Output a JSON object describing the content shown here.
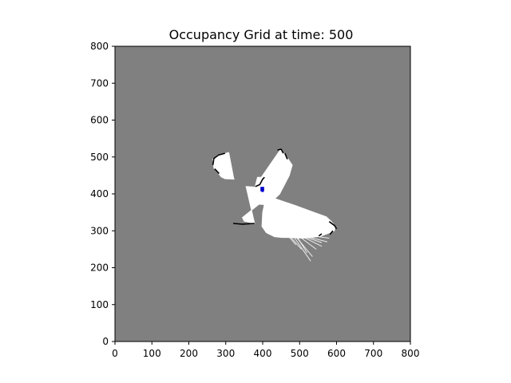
{
  "chart_data": {
    "type": "heatmap",
    "title": "Occupancy Grid at time: 500",
    "xlabel": "",
    "ylabel": "",
    "xlim": [
      0,
      800
    ],
    "ylim": [
      0,
      800
    ],
    "x_ticks": [
      0,
      100,
      200,
      300,
      400,
      500,
      600,
      700,
      800
    ],
    "y_ticks": [
      0,
      100,
      200,
      300,
      400,
      500,
      600,
      700,
      800
    ],
    "grid": false,
    "legend": "none",
    "cell_states": {
      "unknown": {
        "color": "#808080"
      },
      "free": {
        "color": "#ffffff"
      },
      "occupied": {
        "color": "#000000"
      },
      "robot": {
        "color": "#0000cc"
      }
    },
    "free_regions": [
      {
        "name": "left-lobe",
        "points": [
          [
            265,
            493
          ],
          [
            278,
            505
          ],
          [
            308,
            512
          ],
          [
            322,
            440
          ],
          [
            308,
            445
          ],
          [
            288,
            446
          ]
        ]
      },
      {
        "name": "left-arm-lower",
        "points": [
          [
            265,
            493
          ],
          [
            268,
            470
          ],
          [
            288,
            446
          ],
          [
            298,
            441
          ],
          [
            322,
            440
          ],
          [
            310,
            455
          ]
        ]
      },
      {
        "name": "upper-lobe",
        "points": [
          [
            448,
            520
          ],
          [
            462,
            505
          ],
          [
            470,
            492
          ],
          [
            446,
            400
          ],
          [
            430,
            400
          ],
          [
            386,
            430
          ]
        ]
      },
      {
        "name": "upper-right-flank",
        "points": [
          [
            462,
            505
          ],
          [
            480,
            478
          ],
          [
            472,
            450
          ],
          [
            446,
            400
          ]
        ]
      },
      {
        "name": "center-body",
        "points": [
          [
            386,
            445
          ],
          [
            418,
            445
          ],
          [
            446,
            400
          ],
          [
            415,
            370
          ],
          [
            390,
            372
          ],
          [
            372,
            390
          ]
        ]
      },
      {
        "name": "lower-left-lobe",
        "points": [
          [
            355,
            420
          ],
          [
            385,
            418
          ],
          [
            390,
            372
          ],
          [
            360,
            348
          ],
          [
            345,
            336
          ],
          [
            350,
            326
          ],
          [
            378,
            320
          ]
        ]
      },
      {
        "name": "lower-right-lobe",
        "points": [
          [
            410,
            395
          ],
          [
            455,
            380
          ],
          [
            490,
            368
          ],
          [
            525,
            355
          ],
          [
            558,
            343
          ],
          [
            572,
            338
          ],
          [
            585,
            326
          ],
          [
            597,
            312
          ],
          [
            594,
            300
          ],
          [
            572,
            292
          ],
          [
            545,
            290
          ],
          [
            515,
            285
          ],
          [
            480,
            282
          ],
          [
            452,
            282
          ],
          [
            432,
            284
          ],
          [
            410,
            295
          ],
          [
            398,
            312
          ],
          [
            400,
            350
          ]
        ]
      },
      {
        "name": "lower-right-fringe",
        "points": [
          [
            452,
            290
          ],
          [
            520,
            292
          ],
          [
            560,
            300
          ],
          [
            588,
            310
          ],
          [
            585,
            296
          ],
          [
            555,
            285
          ],
          [
            510,
            280
          ],
          [
            470,
            282
          ]
        ]
      }
    ],
    "occupied_segments": [
      {
        "points": [
          [
            265,
            478
          ],
          [
            268,
            496
          ],
          [
            280,
            505
          ],
          [
            298,
            510
          ]
        ]
      },
      {
        "points": [
          [
            270,
            468
          ],
          [
            282,
            455
          ]
        ]
      },
      {
        "points": [
          [
            440,
            519
          ],
          [
            450,
            521
          ],
          [
            456,
            510
          ]
        ]
      },
      {
        "points": [
          [
            460,
            510
          ],
          [
            467,
            494
          ]
        ]
      },
      {
        "points": [
          [
            380,
            420
          ],
          [
            392,
            425
          ],
          [
            400,
            440
          ],
          [
            405,
            445
          ]
        ]
      },
      {
        "points": [
          [
            320,
            320
          ],
          [
            345,
            318
          ],
          [
            378,
            320
          ]
        ]
      },
      {
        "points": [
          [
            580,
            325
          ],
          [
            595,
            314
          ],
          [
            600,
            305
          ]
        ]
      },
      {
        "points": [
          [
            582,
            290
          ],
          [
            590,
            300
          ]
        ]
      },
      {
        "points": [
          [
            552,
            286
          ],
          [
            560,
            292
          ]
        ]
      }
    ],
    "free_rays": [
      {
        "points": [
          [
            480,
            290
          ],
          [
            530,
            218
          ]
        ]
      },
      {
        "points": [
          [
            485,
            290
          ],
          [
            535,
            230
          ]
        ]
      },
      {
        "points": [
          [
            490,
            289
          ],
          [
            520,
            240
          ]
        ]
      },
      {
        "points": [
          [
            495,
            288
          ],
          [
            545,
            250
          ]
        ]
      },
      {
        "points": [
          [
            500,
            288
          ],
          [
            560,
            258
          ]
        ]
      },
      {
        "points": [
          [
            505,
            287
          ],
          [
            560,
            268
          ]
        ]
      },
      {
        "points": [
          [
            470,
            290
          ],
          [
            505,
            250
          ]
        ]
      },
      {
        "points": [
          [
            465,
            291
          ],
          [
            490,
            262
          ]
        ]
      },
      {
        "points": [
          [
            510,
            287
          ],
          [
            575,
            270
          ]
        ]
      },
      {
        "points": [
          [
            520,
            288
          ],
          [
            580,
            280
          ]
        ]
      }
    ],
    "robot_cells": [
      {
        "x": 394,
        "y": 407,
        "w": 10,
        "h": 12
      },
      {
        "x": 397,
        "y": 405,
        "w": 5,
        "h": 3
      }
    ]
  }
}
